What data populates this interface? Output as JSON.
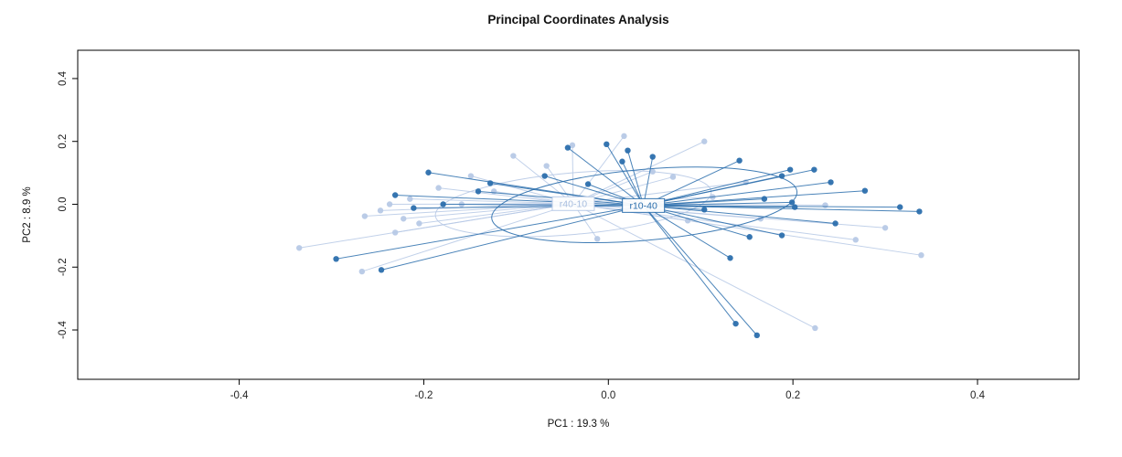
{
  "chart_data": {
    "type": "scatter",
    "title": "Principal Coordinates Analysis",
    "xlabel": "PC1 :  19.3 %",
    "ylabel": "PC2 :  8.9 %",
    "xlim": [
      -0.575,
      0.51
    ],
    "ylim": [
      -0.557,
      0.49
    ],
    "xticks": [
      -0.4,
      -0.2,
      0.0,
      0.2,
      0.4
    ],
    "yticks": [
      -0.4,
      -0.2,
      0.0,
      0.2,
      0.4
    ],
    "grid": false,
    "legend_position": "none",
    "axis_color": "#000000",
    "tick_label_color": "#222222",
    "groups": [
      {
        "name": "r40-10",
        "color": "#b7c9e6",
        "label_text_color": "#a8bedf",
        "label_fill": "#ffffff",
        "centroid": [
          -0.038,
          0.002
        ],
        "ellipse": {
          "cx": -0.038,
          "cy": 0.002,
          "rx": 0.15,
          "ry": 0.098,
          "angle": -5
        },
        "points": [
          [
            -0.335,
            -0.139
          ],
          [
            -0.267,
            -0.214
          ],
          [
            -0.264,
            -0.038
          ],
          [
            -0.247,
            -0.02
          ],
          [
            -0.237,
            0.0
          ],
          [
            -0.222,
            -0.046
          ],
          [
            -0.215,
            0.017
          ],
          [
            -0.231,
            -0.09
          ],
          [
            -0.205,
            -0.061
          ],
          [
            -0.184,
            0.052
          ],
          [
            -0.159,
            0.0
          ],
          [
            -0.149,
            0.09
          ],
          [
            -0.124,
            0.041
          ],
          [
            -0.103,
            0.154
          ],
          [
            -0.067,
            0.122
          ],
          [
            -0.039,
            0.188
          ],
          [
            0.017,
            0.217
          ],
          [
            0.104,
            0.2
          ],
          [
            0.048,
            0.104
          ],
          [
            0.07,
            0.087
          ],
          [
            0.113,
            0.023
          ],
          [
            0.149,
            0.07
          ],
          [
            0.165,
            -0.046
          ],
          [
            0.086,
            -0.052
          ],
          [
            -0.012,
            -0.11
          ],
          [
            0.235,
            -0.003
          ],
          [
            0.268,
            -0.113
          ],
          [
            0.3,
            -0.075
          ],
          [
            0.339,
            -0.162
          ],
          [
            0.224,
            -0.394
          ]
        ]
      },
      {
        "name": "r10-40",
        "color": "#2c6fad",
        "label_text_color": "#2c6fad",
        "label_fill": "#ffffff",
        "centroid": [
          0.038,
          -0.004
        ],
        "ellipse": {
          "cx": 0.039,
          "cy": -0.002,
          "rx": 0.166,
          "ry": 0.113,
          "angle": -5
        },
        "points": [
          [
            -0.195,
            0.101
          ],
          [
            -0.231,
            0.029
          ],
          [
            -0.211,
            -0.012
          ],
          [
            -0.179,
            0.0
          ],
          [
            -0.141,
            0.041
          ],
          [
            -0.128,
            0.067
          ],
          [
            -0.295,
            -0.174
          ],
          [
            -0.246,
            -0.209
          ],
          [
            -0.069,
            0.09
          ],
          [
            -0.044,
            0.18
          ],
          [
            -0.022,
            0.064
          ],
          [
            -0.002,
            0.191
          ],
          [
            0.021,
            0.171
          ],
          [
            0.015,
            0.136
          ],
          [
            0.048,
            0.151
          ],
          [
            0.142,
            0.139
          ],
          [
            0.188,
            0.09
          ],
          [
            0.197,
            0.11
          ],
          [
            0.223,
            0.11
          ],
          [
            0.241,
            0.07
          ],
          [
            0.278,
            0.043
          ],
          [
            0.316,
            -0.009
          ],
          [
            0.337,
            -0.023
          ],
          [
            0.199,
            0.006
          ],
          [
            0.202,
            -0.009
          ],
          [
            0.169,
            0.017
          ],
          [
            0.104,
            -0.017
          ],
          [
            0.153,
            -0.104
          ],
          [
            0.188,
            -0.099
          ],
          [
            0.132,
            -0.171
          ],
          [
            0.246,
            -0.061
          ],
          [
            0.138,
            -0.38
          ],
          [
            0.161,
            -0.417
          ]
        ]
      }
    ]
  }
}
